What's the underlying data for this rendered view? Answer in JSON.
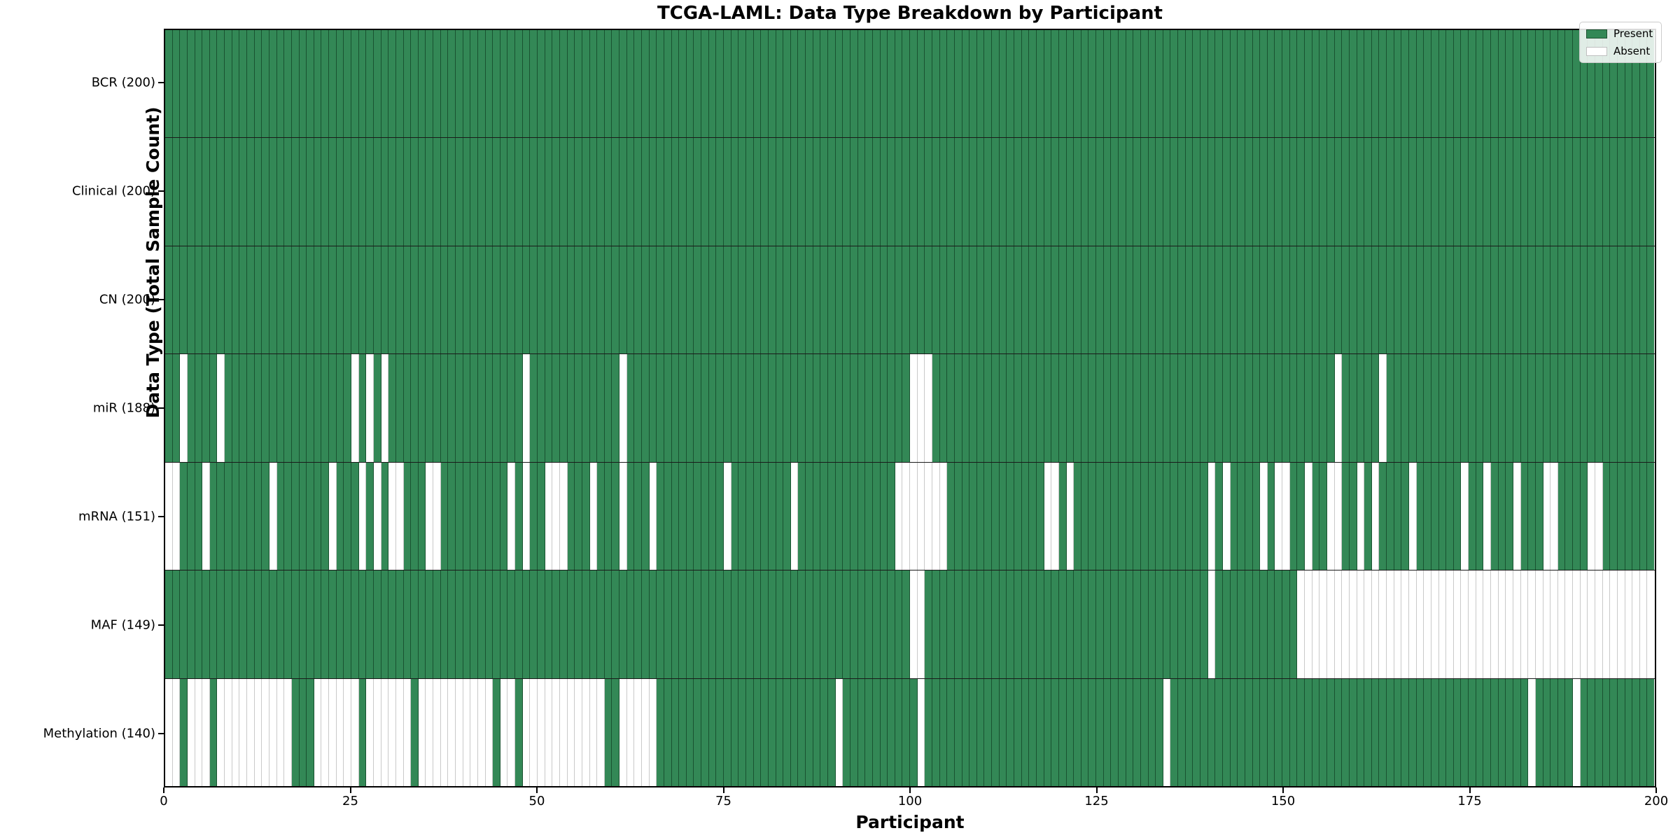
{
  "title": "TCGA-LAML: Data Type Breakdown by Participant",
  "x_axis": {
    "label": "Participant",
    "ticks": [
      0,
      25,
      50,
      75,
      100,
      125,
      150,
      175,
      200
    ],
    "range": [
      0,
      200
    ]
  },
  "y_axis": {
    "label": "Data Type (Total Sample Count)",
    "tick_labels": [
      "BCR (200)",
      "Clinical (200)",
      "CN (200)",
      "miR (188)",
      "mRNA (151)",
      "MAF (149)",
      "Methylation (140)"
    ]
  },
  "legend": {
    "present_label": "Present",
    "absent_label": "Absent"
  },
  "colors": {
    "present": "#338856",
    "absent": "#ffffff",
    "cell_edge_on_green": "rgba(9,48,26,0.62)",
    "cell_edge_on_white": "#c9c9c9",
    "row_separator": "#1a1a1a",
    "plot_border": "#000000",
    "legend_background": "rgba(255,255,255,0.85)",
    "legend_border": "#cccccc"
  },
  "chart_data": {
    "type": "heatmap",
    "n_participants": 200,
    "cell_states": [
      "present",
      "absent"
    ],
    "rows": [
      {
        "name": "BCR",
        "label": "BCR (200)",
        "present_count": 200,
        "absent_participants": []
      },
      {
        "name": "Clinical",
        "label": "Clinical (200)",
        "present_count": 200,
        "absent_participants": []
      },
      {
        "name": "CN",
        "label": "CN (200)",
        "present_count": 200,
        "absent_participants": []
      },
      {
        "name": "miR",
        "label": "miR (188)",
        "present_count": 188,
        "absent_participants": [
          2,
          7,
          25,
          27,
          29,
          48,
          61,
          100,
          101,
          102,
          157,
          163
        ]
      },
      {
        "name": "mRNA",
        "label": "mRNA (151)",
        "present_count": 151,
        "absent_participants": [
          0,
          1,
          5,
          14,
          22,
          26,
          28,
          30,
          31,
          35,
          36,
          46,
          48,
          51,
          52,
          53,
          57,
          61,
          65,
          75,
          84,
          98,
          99,
          100,
          101,
          102,
          103,
          104,
          118,
          119,
          121,
          140,
          142,
          147,
          149,
          150,
          153,
          156,
          157,
          160,
          162,
          167,
          174,
          177,
          181,
          185,
          186,
          191,
          192
        ]
      },
      {
        "name": "MAF",
        "label": "MAF (149)",
        "present_count": 149,
        "absent_participants": [
          100,
          101,
          140,
          152,
          153,
          154,
          155,
          156,
          157,
          158,
          159,
          160,
          161,
          162,
          163,
          164,
          165,
          166,
          167,
          168,
          169,
          170,
          171,
          172,
          173,
          174,
          175,
          176,
          177,
          178,
          179,
          180,
          181,
          182,
          183,
          184,
          185,
          186,
          187,
          188,
          189,
          190,
          191,
          192,
          193,
          194,
          195,
          196,
          197,
          198,
          199
        ]
      },
      {
        "name": "Methylation",
        "label": "Methylation (140)",
        "present_count": 140,
        "absent_participants": [
          0,
          1,
          3,
          4,
          5,
          7,
          8,
          9,
          10,
          11,
          12,
          13,
          14,
          15,
          16,
          20,
          21,
          22,
          23,
          24,
          25,
          27,
          28,
          29,
          30,
          31,
          32,
          34,
          35,
          36,
          37,
          38,
          39,
          40,
          41,
          42,
          43,
          45,
          46,
          48,
          49,
          50,
          51,
          52,
          53,
          54,
          55,
          56,
          57,
          58,
          61,
          62,
          63,
          64,
          65,
          90,
          101,
          134,
          183,
          189
        ]
      }
    ]
  }
}
